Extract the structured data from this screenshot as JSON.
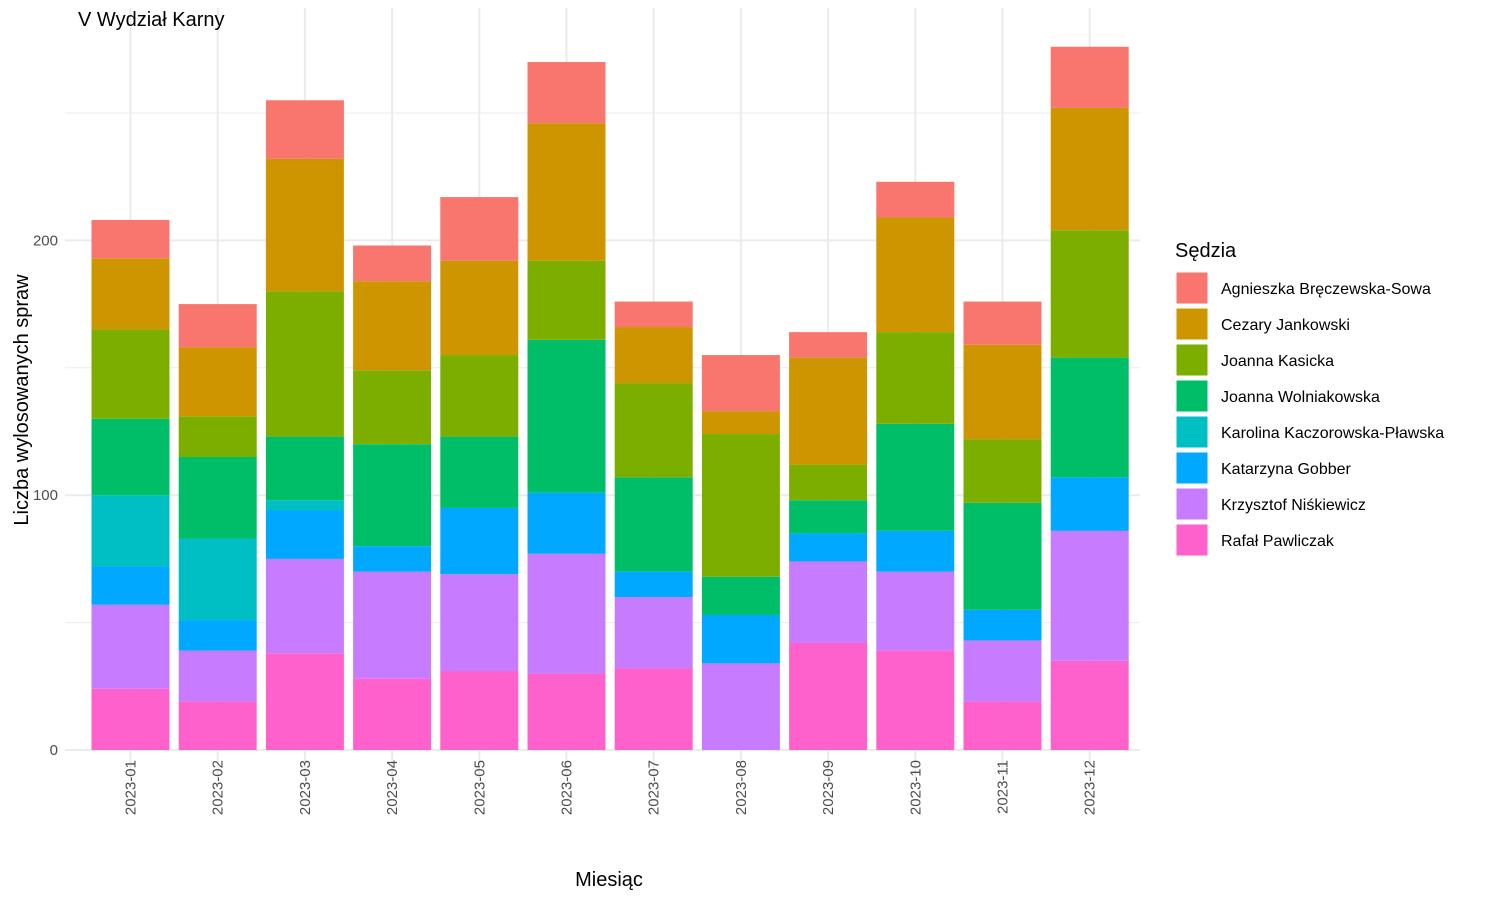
{
  "chart_data": {
    "type": "bar",
    "stacked": true,
    "title": "V Wydział Karny",
    "xlabel": "Miesiąc",
    "ylabel": "Liczba wylosowanych spraw",
    "ylim": [
      0,
      285
    ],
    "yticks": [
      0,
      100,
      200
    ],
    "grid": true,
    "legend_title": "Sędzia",
    "legend_position": "right",
    "categories": [
      "2023-01",
      "2023-02",
      "2023-03",
      "2023-04",
      "2023-05",
      "2023-06",
      "2023-07",
      "2023-08",
      "2023-09",
      "2023-10",
      "2023-11",
      "2023-12"
    ],
    "series": [
      {
        "name": "Rafał Pawliczak",
        "color": "#FF61CC",
        "values": [
          24,
          19,
          38,
          28,
          31,
          30,
          32,
          0,
          42,
          39,
          19,
          35
        ]
      },
      {
        "name": "Krzysztof Niśkiewicz",
        "color": "#C77CFF",
        "values": [
          33,
          20,
          37,
          42,
          38,
          47,
          28,
          34,
          32,
          31,
          24,
          51
        ]
      },
      {
        "name": "Katarzyna Gobber",
        "color": "#00A9FF",
        "values": [
          15,
          12,
          19,
          10,
          26,
          24,
          10,
          19,
          11,
          16,
          12,
          21
        ]
      },
      {
        "name": "Karolina Kaczorowska-Pławska",
        "color": "#00BFC4",
        "values": [
          28,
          32,
          4,
          0,
          0,
          0,
          0,
          0,
          0,
          0,
          0,
          0
        ]
      },
      {
        "name": "Joanna Wolniakowska",
        "color": "#00BE67",
        "values": [
          30,
          32,
          25,
          40,
          28,
          60,
          37,
          15,
          13,
          42,
          42,
          47
        ]
      },
      {
        "name": "Joanna Kasicka",
        "color": "#7CAE00",
        "values": [
          35,
          16,
          57,
          29,
          32,
          31,
          37,
          56,
          14,
          36,
          25,
          50
        ]
      },
      {
        "name": "Cezary Jankowski",
        "color": "#CD9600",
        "values": [
          28,
          27,
          52,
          35,
          37,
          54,
          22,
          9,
          42,
          45,
          37,
          48
        ]
      },
      {
        "name": "Agnieszka Bręczewska-Sowa",
        "color": "#F8766D",
        "values": [
          15,
          17,
          23,
          14,
          25,
          24,
          10,
          22,
          10,
          14,
          17,
          24
        ]
      }
    ],
    "legend_order": [
      "Agnieszka Bręczewska-Sowa",
      "Cezary Jankowski",
      "Joanna Kasicka",
      "Joanna Wolniakowska",
      "Karolina Kaczorowska-Pławska",
      "Katarzyna Gobber",
      "Krzysztof Niśkiewicz",
      "Rafał Pawliczak"
    ]
  }
}
